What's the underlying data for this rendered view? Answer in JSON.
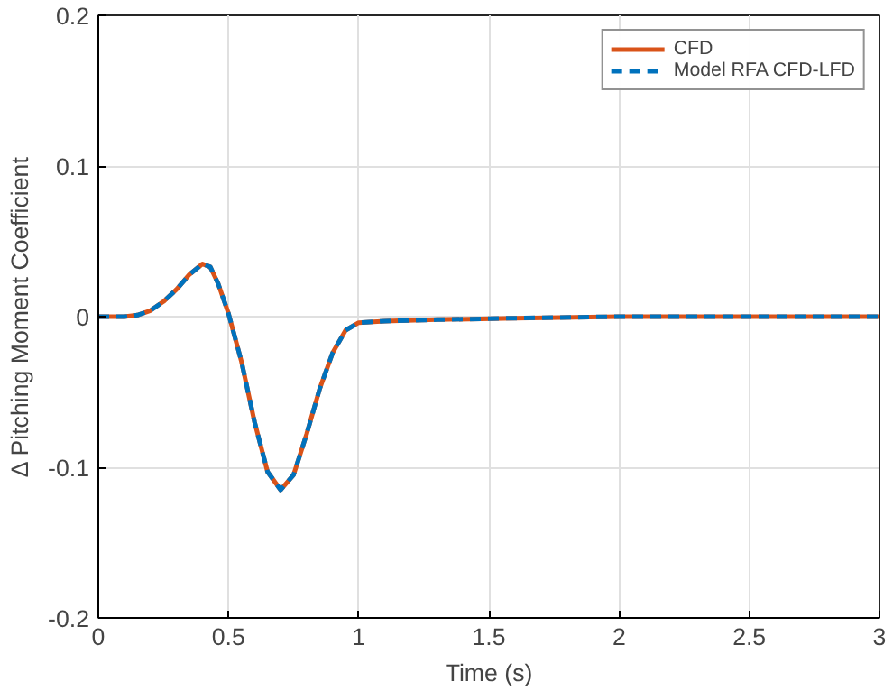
{
  "chart_data": {
    "type": "line",
    "xlabel": "Time (s)",
    "ylabel": "Δ Pitching Moment Coefficient",
    "x": [
      0,
      0.1,
      0.15,
      0.2,
      0.25,
      0.3,
      0.35,
      0.4,
      0.43,
      0.46,
      0.5,
      0.55,
      0.6,
      0.65,
      0.7,
      0.75,
      0.8,
      0.85,
      0.9,
      0.95,
      1.0,
      1.1,
      1.3,
      1.6,
      2,
      3
    ],
    "series": [
      {
        "name": "CFD",
        "color": "#d95319",
        "line_style": "solid",
        "values": [
          0,
          0,
          0.001,
          0.004,
          0.01,
          0.018,
          0.028,
          0.035,
          0.033,
          0.022,
          0.002,
          -0.03,
          -0.07,
          -0.103,
          -0.115,
          -0.105,
          -0.078,
          -0.048,
          -0.024,
          -0.009,
          -0.004,
          -0.003,
          -0.002,
          -0.001,
          0,
          0
        ]
      },
      {
        "name": "Model RFA CFD-LFD",
        "color": "#0072bd",
        "line_style": "dashed",
        "values": [
          0,
          0,
          0.001,
          0.004,
          0.01,
          0.018,
          0.028,
          0.035,
          0.033,
          0.022,
          0.002,
          -0.03,
          -0.07,
          -0.103,
          -0.115,
          -0.105,
          -0.078,
          -0.048,
          -0.024,
          -0.009,
          -0.004,
          -0.003,
          -0.002,
          -0.001,
          0,
          0
        ]
      }
    ],
    "xlim": [
      0,
      3
    ],
    "xticks": [
      0,
      0.5,
      1,
      1.5,
      2,
      2.5,
      3
    ],
    "ylim": [
      -0.2,
      0.2
    ],
    "yticks": [
      -0.2,
      -0.1,
      0,
      0.1,
      0.2
    ],
    "grid": true,
    "legend": "top right"
  }
}
